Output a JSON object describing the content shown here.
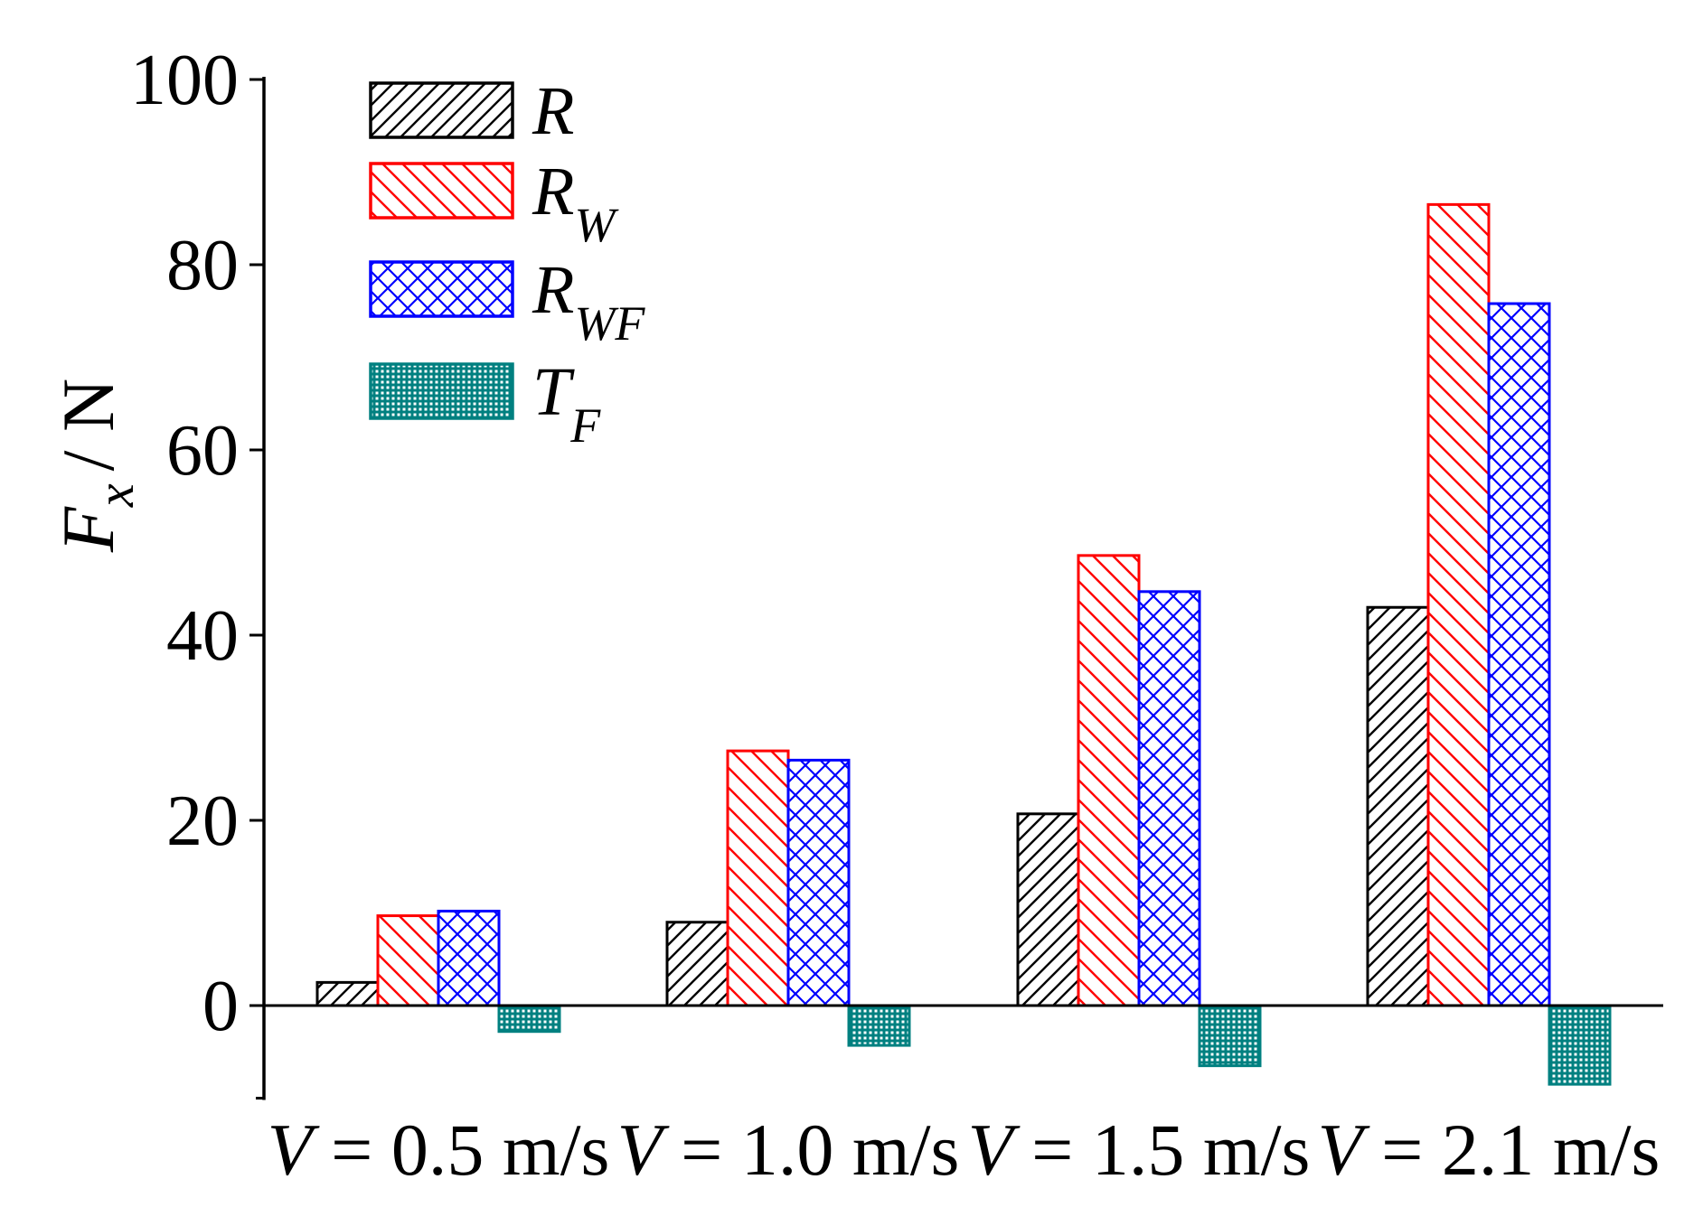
{
  "chart_data": {
    "type": "bar",
    "title": "",
    "ylabel": {
      "main": "F",
      "sub": "x",
      "unit": "/ N"
    },
    "ylim": [
      -10,
      100
    ],
    "yticks": [
      0,
      20,
      40,
      60,
      80,
      100
    ],
    "ytick_labels": [
      "0",
      "20",
      "40",
      "60",
      "80",
      "100"
    ],
    "categories": [
      {
        "var": "V",
        "eq": " = 0.5 m/s"
      },
      {
        "var": "V",
        "eq": " = 1.0 m/s"
      },
      {
        "var": "V",
        "eq": " = 1.5 m/s"
      },
      {
        "var": "V",
        "eq": " = 2.1 m/s"
      }
    ],
    "series": [
      {
        "name": "R",
        "sub": "",
        "color": "#000000",
        "pattern": "diag-up",
        "values": [
          2.5,
          9.0,
          20.7,
          43.0
        ]
      },
      {
        "name": "R",
        "sub": "W",
        "color": "#ff0000",
        "pattern": "diag-down",
        "values": [
          9.7,
          27.5,
          48.6,
          86.5
        ]
      },
      {
        "name": "R",
        "sub": "WF",
        "color": "#0000ff",
        "pattern": "crosshatch",
        "values": [
          10.2,
          26.5,
          44.7,
          75.8
        ]
      },
      {
        "name": "T",
        "sub": "F",
        "color": "#008080",
        "pattern": "grid",
        "values": [
          -2.8,
          -4.3,
          -6.5,
          -8.5
        ]
      }
    ],
    "legend_position": "top-left",
    "grid": false
  }
}
